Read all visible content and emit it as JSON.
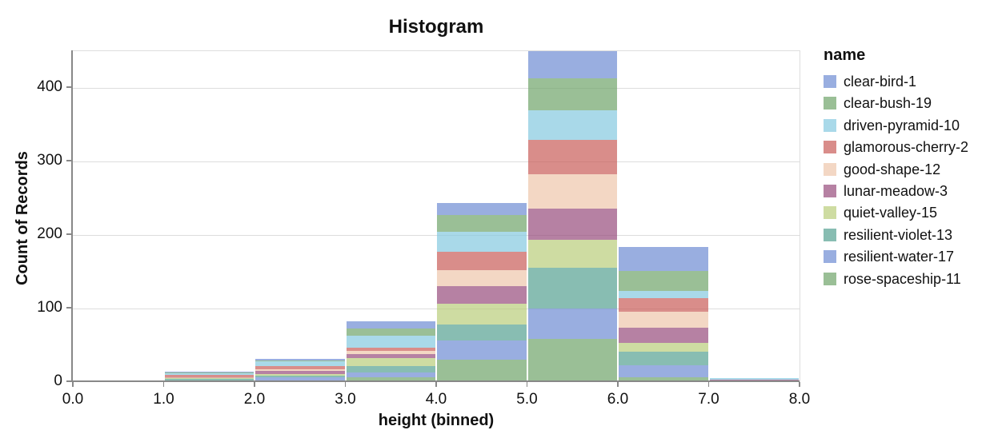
{
  "chart_data": {
    "type": "bar",
    "variant": "stacked-histogram",
    "title": "Histogram",
    "xlabel": "height (binned)",
    "ylabel": "Count of Records",
    "legend_title": "name",
    "legend_position": "right",
    "grid": true,
    "xlim": [
      0,
      8
    ],
    "ylim": [
      0,
      450
    ],
    "bin_width": 1,
    "x_tick_labels": [
      "0.0",
      "1.0",
      "2.0",
      "3.0",
      "4.0",
      "5.0",
      "6.0",
      "7.0",
      "8.0"
    ],
    "y_tick_values": [
      0,
      100,
      200,
      300,
      400
    ],
    "categories": [
      "0-1",
      "1-2",
      "2-3",
      "3-4",
      "4-5",
      "5-6",
      "6-7",
      "7-8"
    ],
    "bin_totals": [
      2,
      14,
      31,
      83,
      243,
      450,
      184,
      5
    ],
    "bar_opacity": 0.7,
    "stack_order": "legend order top-to-bottom; last series at baseline",
    "series": [
      {
        "name": "clear-bird-1",
        "color": "#6D8BD3",
        "values": [
          0,
          1,
          2,
          10,
          16,
          37,
          33,
          0
        ]
      },
      {
        "name": "clear-bush-19",
        "color": "#6FA46A",
        "values": [
          0,
          1,
          1,
          10,
          23,
          43,
          27,
          0
        ]
      },
      {
        "name": "driven-pyramid-10",
        "color": "#84C9E0",
        "values": [
          0,
          2,
          6,
          16,
          27,
          41,
          10,
          2
        ]
      },
      {
        "name": "glamorous-cherry-2",
        "color": "#C95C58",
        "values": [
          0,
          3,
          5,
          5,
          25,
          46,
          18,
          0
        ]
      },
      {
        "name": "good-shape-12",
        "color": "#EEC6AB",
        "values": [
          0,
          1,
          2,
          4,
          22,
          47,
          22,
          0
        ]
      },
      {
        "name": "lunar-meadow-3",
        "color": "#974C7C",
        "values": [
          0,
          1,
          4,
          5,
          23,
          43,
          21,
          3
        ]
      },
      {
        "name": "quiet-valley-15",
        "color": "#B9CD7A",
        "values": [
          2,
          1,
          2,
          11,
          29,
          38,
          12,
          0
        ]
      },
      {
        "name": "resilient-violet-13",
        "color": "#55A192",
        "values": [
          0,
          2,
          3,
          9,
          22,
          55,
          18,
          0
        ]
      },
      {
        "name": "resilient-water-17",
        "color": "#6D8BD3",
        "values": [
          0,
          1,
          4,
          6,
          26,
          41,
          17,
          0
        ]
      },
      {
        "name": "rose-spaceship-11",
        "color": "#6FA46A",
        "values": [
          0,
          1,
          2,
          7,
          30,
          59,
          6,
          0
        ]
      }
    ]
  },
  "colors": {
    "axis": "#888888",
    "grid": "#dddddd",
    "text": "#111111",
    "background": "#ffffff"
  }
}
